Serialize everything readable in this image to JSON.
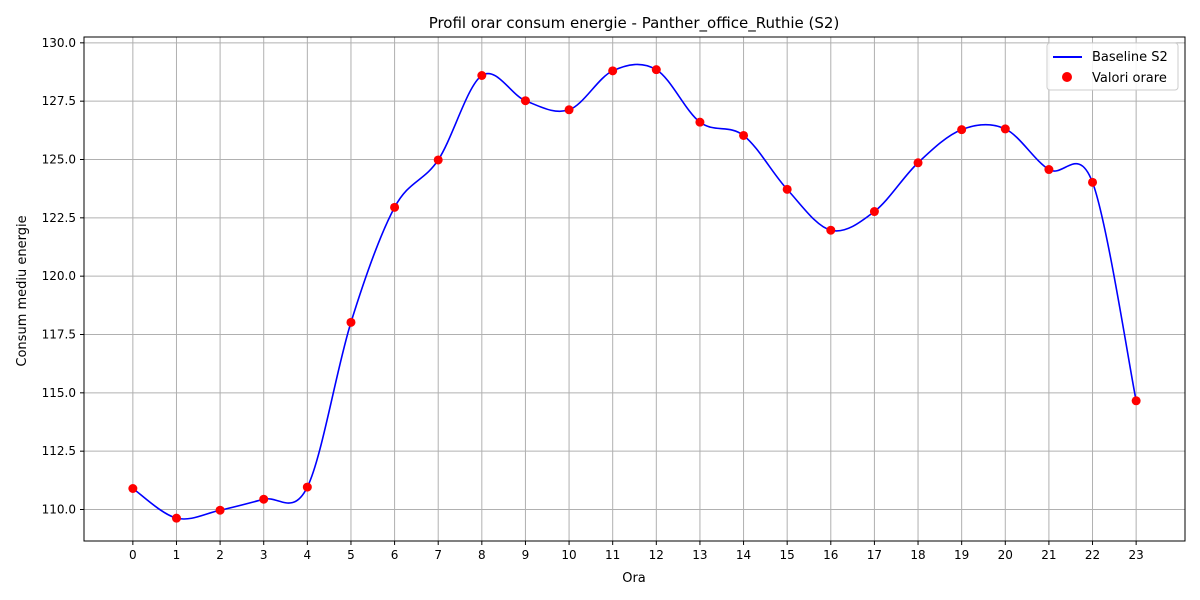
{
  "chart_data": {
    "type": "line",
    "title": "Profil orar consum energie - Panther_office_Ruthie (S2)",
    "xlabel": "Ora",
    "ylabel": "Consum mediu energie",
    "x": [
      0,
      1,
      2,
      3,
      4,
      5,
      6,
      7,
      8,
      9,
      10,
      11,
      12,
      13,
      14,
      15,
      16,
      17,
      18,
      19,
      20,
      21,
      22,
      23
    ],
    "x_ticks": [
      "0",
      "1",
      "2",
      "3",
      "4",
      "5",
      "6",
      "7",
      "8",
      "9",
      "10",
      "11",
      "12",
      "13",
      "14",
      "15",
      "16",
      "17",
      "18",
      "19",
      "20",
      "21",
      "22",
      "23"
    ],
    "xlim": [
      -1.12,
      24.12
    ],
    "ylim": [
      108.65,
      130.25
    ],
    "y_ticks": [
      "110.0",
      "112.5",
      "115.0",
      "117.5",
      "120.0",
      "122.5",
      "125.0",
      "127.5",
      "130.0"
    ],
    "grid": true,
    "legend_position": "top-right",
    "series": [
      {
        "name": "Baseline S2",
        "kind": "line",
        "color": "#0000ff",
        "values": [
          110.9,
          109.63,
          109.97,
          110.44,
          110.96,
          118.02,
          122.95,
          124.98,
          128.6,
          127.52,
          127.13,
          128.8,
          128.85,
          126.6,
          126.03,
          123.72,
          121.97,
          122.77,
          124.86,
          126.28,
          126.31,
          124.57,
          124.02,
          114.66
        ]
      },
      {
        "name": "Valori orare",
        "kind": "scatter",
        "color": "#ff0000",
        "values": [
          110.9,
          109.63,
          109.97,
          110.44,
          110.96,
          118.02,
          122.95,
          124.98,
          128.6,
          127.52,
          127.13,
          128.8,
          128.85,
          126.6,
          126.03,
          123.72,
          121.97,
          122.77,
          124.86,
          126.28,
          126.31,
          124.57,
          124.02,
          114.66
        ]
      }
    ]
  }
}
